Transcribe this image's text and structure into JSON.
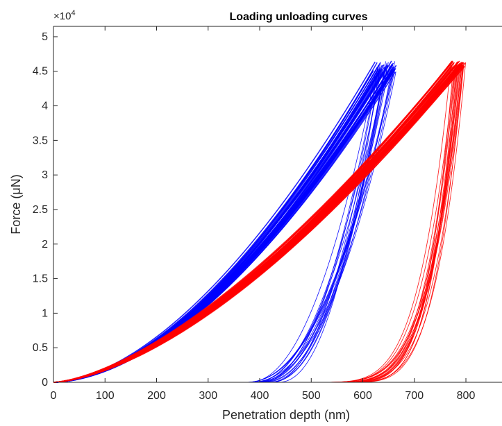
{
  "chart_data": {
    "type": "line",
    "title": "Loading unloading curves",
    "xlabel": "Penetration depth (nm)",
    "ylabel": "Force (μN)",
    "y_exponent_base": "×10",
    "y_exponent_power": "4",
    "xlim": [
      0,
      870
    ],
    "ylim": [
      0,
      5.15
    ],
    "x_ticks": [
      0,
      100,
      200,
      300,
      400,
      500,
      600,
      700,
      800
    ],
    "y_ticks": [
      0,
      0.5,
      1,
      1.5,
      2,
      2.5,
      3,
      3.5,
      4,
      4.5,
      5
    ],
    "y_tick_labels": [
      "0",
      "0.5",
      "1",
      "1.5",
      "2",
      "2.5",
      "3",
      "3.5",
      "4",
      "4.5",
      "5"
    ],
    "grid": false,
    "series": [
      {
        "color": "#0000ff",
        "loading": {
          "max_depth_range": [
            620,
            665
          ],
          "max_force_range": [
            4.45,
            4.65
          ],
          "exponent": 1.75,
          "curves": 40
        },
        "unloading": {
          "zero_force_depth_range": [
            370,
            440
          ],
          "exponent": 2.2,
          "curves": 20
        }
      },
      {
        "color": "#ff0000",
        "loading": {
          "max_depth_range": [
            770,
            800
          ],
          "max_force_range": [
            4.55,
            4.65
          ],
          "exponent": 1.55,
          "curves": 40
        },
        "unloading": {
          "zero_force_depth_range": [
            490,
            560
          ],
          "exponent": 4.5,
          "curves": 20
        }
      }
    ]
  }
}
